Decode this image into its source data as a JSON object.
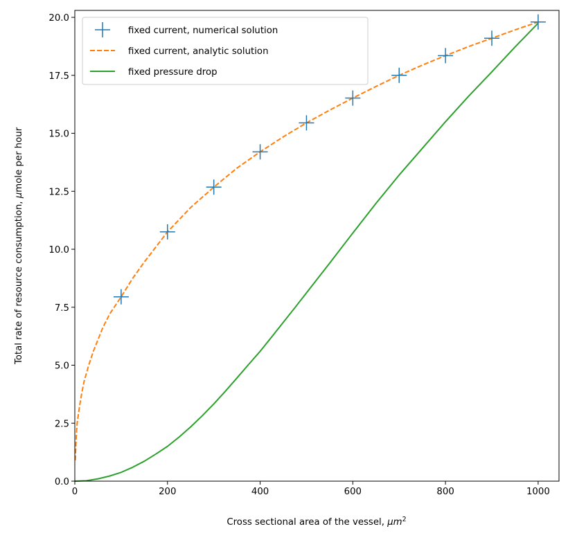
{
  "chart_data": {
    "type": "line",
    "xlabel": "Cross sectional area of the vessel, ",
    "xlabel_unit": "μm",
    "xlabel_unit_sup": "2",
    "ylabel": "Total rate of resource consumption, ",
    "ylabel_unit": "μ",
    "ylabel_tail": "mole per hour",
    "xlim": [
      0,
      1045
    ],
    "ylim": [
      0,
      20.3
    ],
    "xticks": [
      0,
      200,
      400,
      600,
      800,
      1000
    ],
    "xtick_labels": [
      "0",
      "200",
      "400",
      "600",
      "800",
      "1000"
    ],
    "yticks": [
      0,
      2.5,
      5,
      7.5,
      10,
      12.5,
      15,
      17.5,
      20
    ],
    "ytick_labels": [
      "0.0",
      "2.5",
      "5.0",
      "7.5",
      "10.0",
      "12.5",
      "15.0",
      "17.5",
      "20.0"
    ],
    "grid": false,
    "legend_position": "upper-left",
    "series": [
      {
        "name": "fixed current, numerical solution",
        "style": "markers-plus",
        "color": "#1f77b4",
        "x": [
          100,
          200,
          300,
          400,
          500,
          600,
          700,
          800,
          900,
          1000
        ],
        "y": [
          7.95,
          10.75,
          12.68,
          14.2,
          15.45,
          16.52,
          17.5,
          18.35,
          19.1,
          19.8
        ]
      },
      {
        "name": "fixed current, analytic solution",
        "style": "dashed",
        "color": "#ff7f0e",
        "x": [
          1,
          3,
          5,
          10,
          15,
          20,
          30,
          40,
          50,
          60,
          75,
          100,
          125,
          150,
          200,
          250,
          300,
          350,
          400,
          450,
          500,
          550,
          600,
          650,
          700,
          750,
          800,
          850,
          900,
          950,
          1000
        ],
        "y": [
          0.9,
          1.9,
          2.5,
          3.2,
          3.8,
          4.3,
          5.0,
          5.6,
          6.1,
          6.6,
          7.2,
          7.95,
          8.75,
          9.45,
          10.75,
          11.8,
          12.68,
          13.5,
          14.2,
          14.85,
          15.45,
          16.0,
          16.52,
          17.02,
          17.5,
          17.94,
          18.35,
          18.74,
          19.1,
          19.46,
          19.8
        ]
      },
      {
        "name": "fixed pressure drop",
        "style": "solid",
        "color": "#2ca02c",
        "x": [
          0,
          25,
          50,
          75,
          100,
          125,
          150,
          175,
          200,
          225,
          250,
          275,
          300,
          325,
          350,
          375,
          400,
          425,
          450,
          475,
          500,
          550,
          600,
          650,
          700,
          750,
          800,
          850,
          900,
          950,
          1000
        ],
        "y": [
          0,
          0.02,
          0.1,
          0.22,
          0.38,
          0.6,
          0.86,
          1.17,
          1.5,
          1.9,
          2.34,
          2.82,
          3.33,
          3.88,
          4.45,
          5.03,
          5.6,
          6.22,
          6.85,
          7.48,
          8.12,
          9.4,
          10.7,
          11.98,
          13.2,
          14.35,
          15.5,
          16.6,
          17.65,
          18.72,
          19.75
        ]
      }
    ]
  }
}
